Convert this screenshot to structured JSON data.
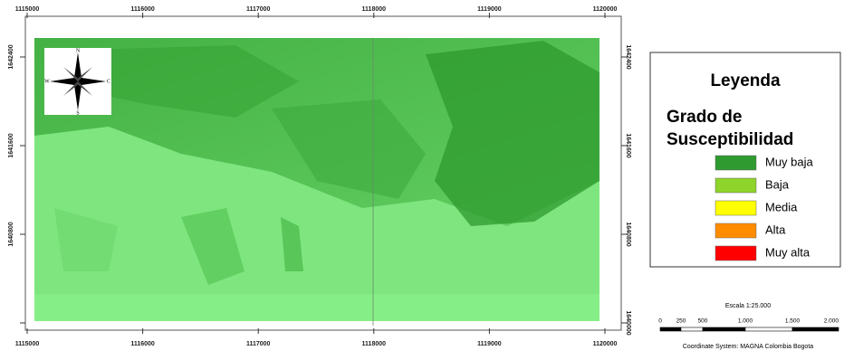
{
  "map": {
    "x_labels": [
      "1115000",
      "1116000",
      "1117000",
      "1118000",
      "1119000",
      "1120000"
    ],
    "y_labels": [
      "1642400",
      "1641600",
      "1640800",
      "1640000"
    ],
    "compass": {
      "n": "N",
      "s": "S",
      "w": "W",
      "e": "C"
    }
  },
  "legend": {
    "title": "Leyenda",
    "subtitle_lines": [
      "Grado de",
      "Susceptibilidad"
    ],
    "items": [
      {
        "label": "Muy baja",
        "color": "#2f9a2f"
      },
      {
        "label": "Baja",
        "color": "#8fd42a"
      },
      {
        "label": "Media",
        "color": "#ffff00"
      },
      {
        "label": "Alta",
        "color": "#ff8c00"
      },
      {
        "label": "Muy alta",
        "color": "#ff0000"
      }
    ]
  },
  "scale": {
    "title": "Escala 1:25.000",
    "labels": [
      "0",
      "250",
      "500",
      "1.000",
      "1.500",
      "2.000"
    ],
    "coordinate_system": "Coordinate System: MAGNA Colombia Bogota"
  }
}
